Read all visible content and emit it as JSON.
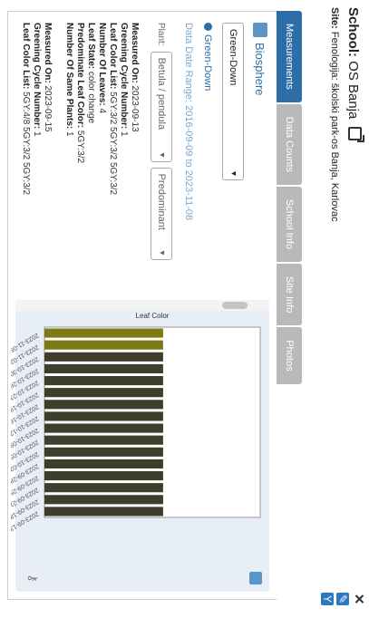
{
  "header": {
    "school_label": "School:",
    "school_name": "OS Banja",
    "site_label": "Site:",
    "site_name": "Fenologija: školski park-os Banja, Karlovac"
  },
  "tools": {
    "close": "✕",
    "edit": "✎",
    "filter": "Y"
  },
  "tabs": [
    {
      "label": "Measurements",
      "active": true
    },
    {
      "label": "Data Counts"
    },
    {
      "label": "School Info"
    },
    {
      "label": "Site Info"
    },
    {
      "label": "Photos"
    }
  ],
  "sidebar": {
    "protocol": "Biosphere",
    "protocol_select": "Green-Down",
    "radio_label": "Green-Down",
    "range_label": "Data Date Range:",
    "range_value": "2016-09-09 to 2023-11-08",
    "plant_label": "Plant:",
    "plant_select": "Betula / pendula",
    "metric_select": "Predominant"
  },
  "records": [
    {
      "measured_on": [
        "Measured On:",
        "2023-09-13"
      ],
      "cycle": [
        "Greening Cycle Number:",
        "1"
      ],
      "leaf_list": [
        "Leaf Color List:",
        "5GY:3/2 5GY:3/2 5GY:3/2"
      ],
      "leaves": [
        "Number Of Leaves:",
        "4"
      ],
      "state": [
        "Leaf State:",
        "color change"
      ],
      "predominant": [
        "Predominate Leaf Color:",
        "5GY:3/2"
      ],
      "same": [
        "Number Of Same Plants:",
        "1"
      ]
    },
    {
      "measured_on": [
        "Measured On:",
        "2023-09-15"
      ],
      "cycle": [
        "Greening Cycle Number:",
        "1"
      ],
      "leaf_list": [
        "Leaf Color List:",
        "5GY:4/8 5GY:3/2 5GY:3/2"
      ]
    }
  ],
  "chart_data": {
    "type": "bar",
    "orientation": "horizontal",
    "ylabel": "Leaf Color",
    "categories": [
      "2023-11-05",
      "2023-11-02",
      "2023-10-30",
      "2023-10-26",
      "2023-10-23",
      "2023-10-19",
      "2023-10-16",
      "2023-10-12",
      "2023-10-09",
      "2023-10-05",
      "2023-10-02",
      "2023-09-28",
      "2023-09-25",
      "2023-09-21",
      "2023-09-18",
      "2023-09-13"
    ],
    "values": [
      1,
      1,
      1,
      1,
      1,
      1,
      1,
      1,
      1,
      1,
      1,
      1,
      1,
      1,
      1,
      1
    ],
    "colors": [
      "#7d7a15",
      "#7d7a15",
      "#3d3e2c",
      "#3d3e2c",
      "#3d3e2c",
      "#3d3e2c",
      "#3d3e2c",
      "#3d3e2c",
      "#3d3e2c",
      "#3d3e2c",
      "#3d3e2c",
      "#3d3e2c",
      "#3d3e2c",
      "#3d3e2c",
      "#3d3e2c",
      "#3d3e2c"
    ],
    "xlim": [
      0,
      1
    ]
  },
  "colors": {
    "accent": "#2d6ea8",
    "tab_inactive": "#b9b9b9"
  }
}
